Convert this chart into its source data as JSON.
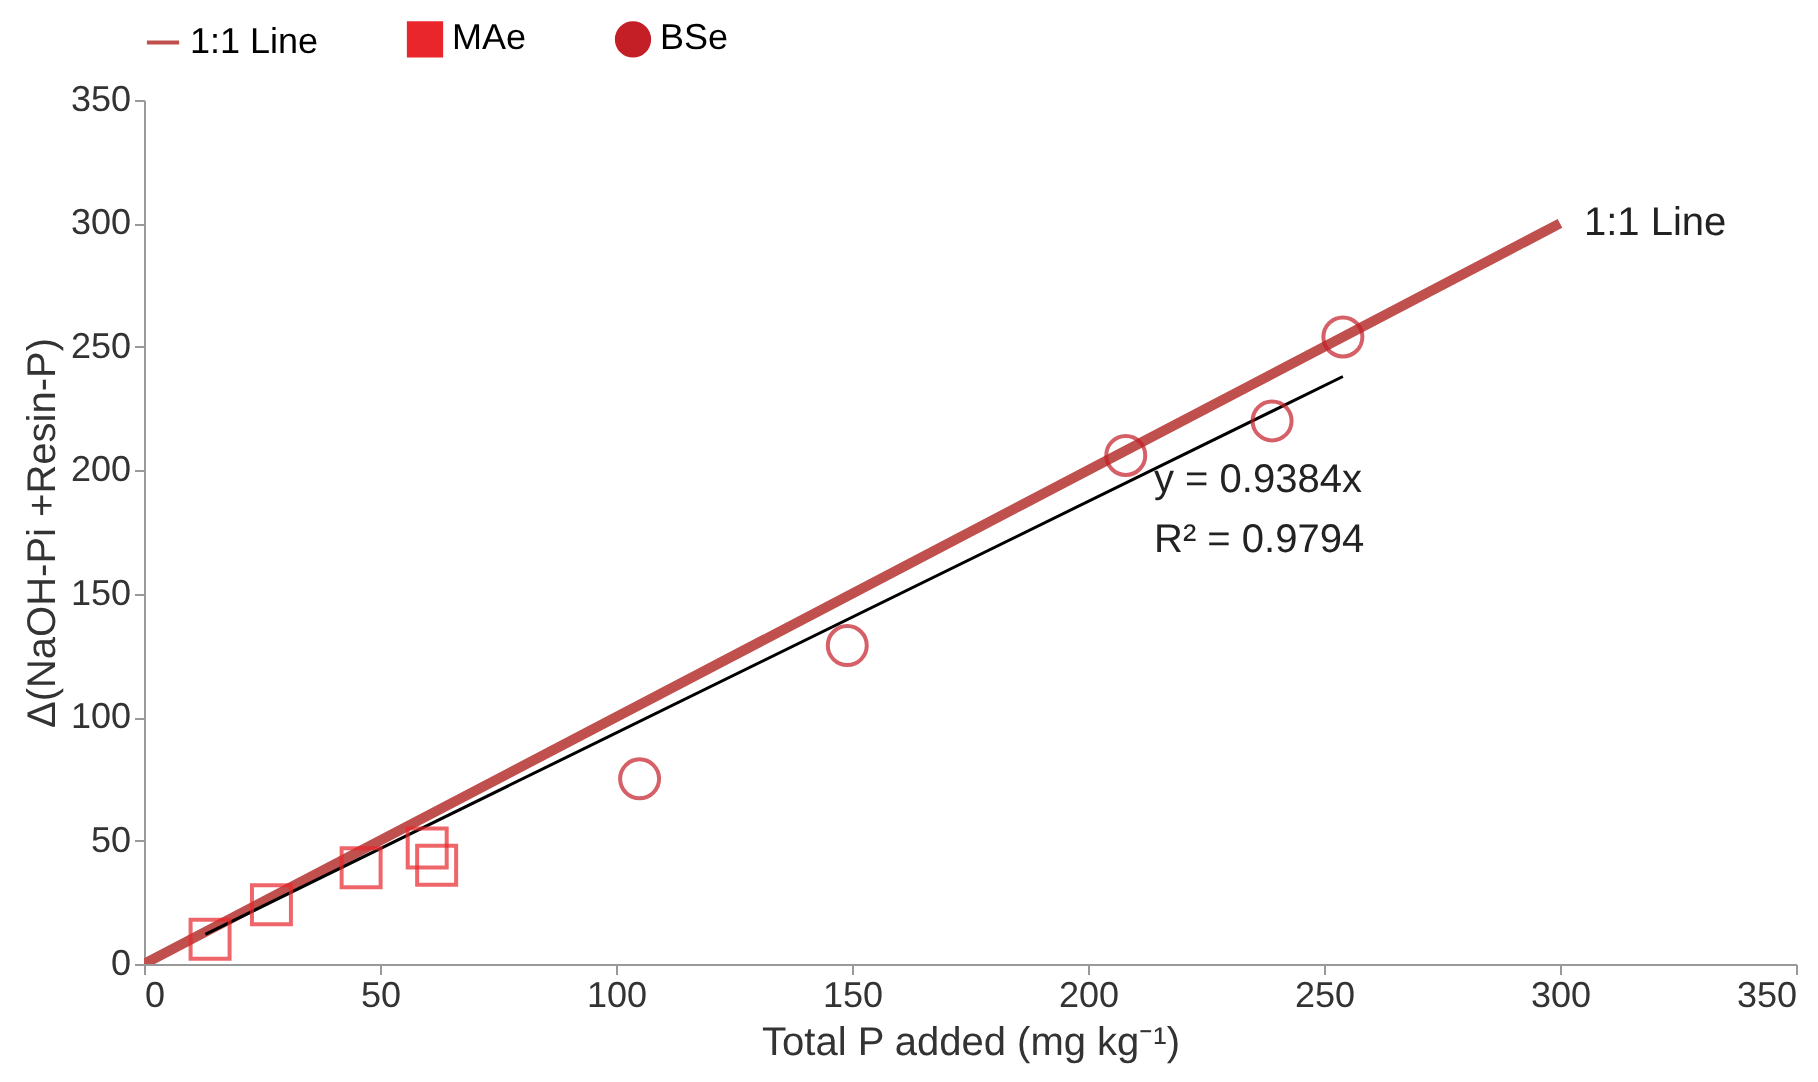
{
  "chart_data": {
    "type": "scatter",
    "xlabel": "Total P added (mg kg⁻¹)",
    "ylabel": "Δ(NaOH-Pi +Resin-P)",
    "xlim": [
      0,
      350
    ],
    "ylim": [
      0,
      350
    ],
    "xticks": [
      0,
      50,
      100,
      150,
      200,
      250,
      300,
      350
    ],
    "yticks": [
      0,
      50,
      100,
      150,
      200,
      250,
      300,
      350
    ],
    "grid": false,
    "legend": "top",
    "series": [
      {
        "name": "1:1 Line",
        "type": "line",
        "color": "#c0504d",
        "x": [
          0,
          300
        ],
        "values": [
          0,
          300
        ]
      },
      {
        "name": "MAe",
        "marker": "square",
        "color": "#e8262b",
        "x": [
          14,
          27,
          46,
          60,
          62
        ],
        "values": [
          10,
          24,
          39,
          47,
          40
        ]
      },
      {
        "name": "BSe",
        "marker": "circle",
        "color": "#c41e27",
        "x": [
          105,
          149,
          208,
          239,
          254
        ],
        "values": [
          75,
          129,
          206,
          220,
          254
        ]
      },
      {
        "type": "line",
        "color": "#000000",
        "x": [
          13,
          254
        ],
        "values": [
          12,
          238
        ]
      }
    ],
    "annotations": [
      {
        "text": "1:1 Line",
        "x": 300,
        "y": 300
      },
      "y = 0.9384x",
      "R² = 0.9794"
    ]
  }
}
